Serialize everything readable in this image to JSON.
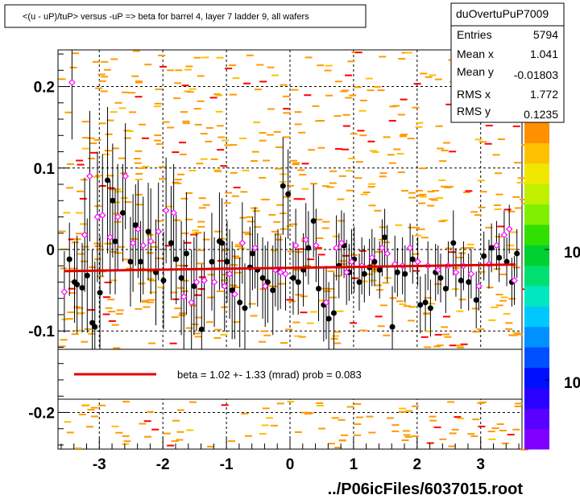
{
  "chart_data": {
    "type": "scatter",
    "title": "<(u - uP)/tuP> versus  -uP => beta for barrel 4, layer 7 ladder 9, all wafers",
    "xlim": [
      -3.65,
      3.65
    ],
    "ylim": [
      -0.245,
      0.245
    ],
    "xticks": [
      "-3",
      "-2",
      "-1",
      "0",
      "1",
      "2",
      "3"
    ],
    "xtick_values": [
      -3,
      -2,
      -1,
      0,
      1,
      2,
      3
    ],
    "yticks": [
      "0.2",
      "0.1",
      "0",
      "-0.1",
      "-0.2"
    ],
    "ytick_values": [
      0.2,
      0.1,
      0,
      -0.1,
      -0.2
    ],
    "grid": true,
    "stats": {
      "name": "duOvertuPuP7009",
      "rows": [
        {
          "label": "Entries",
          "value": "5794"
        },
        {
          "label": "Mean x",
          "value": "1.041"
        },
        {
          "label": "Mean y",
          "value": "-0.01803"
        },
        {
          "label": "RMS x",
          "value": "1.772"
        },
        {
          "label": "RMS y",
          "value": "0.1235"
        }
      ]
    },
    "palette_labels": [
      "10",
      "10"
    ],
    "palette_colors": [
      "#7f00ff",
      "#5a00ff",
      "#2a00ff",
      "#0010ff",
      "#0050ff",
      "#0090ff",
      "#00c8ff",
      "#00e8c0",
      "#00e070",
      "#00d030",
      "#30e000",
      "#80f000",
      "#c0f000",
      "#f0e800",
      "#ffc000",
      "#ff9000"
    ],
    "fit": {
      "label": "beta =    1.02 +-  1.33 (mrad) prob = 0.083",
      "x": [
        -3.55,
        3.55
      ],
      "y": [
        -0.0265,
        -0.0185
      ],
      "color": "#e00000"
    },
    "profile_filled": {
      "x": [
        -3.47,
        -3.39,
        -3.35,
        -3.27,
        -3.19,
        -3.11,
        -3.07,
        -2.99,
        -2.87,
        -2.79,
        -2.75,
        -2.63,
        -2.51,
        -2.43,
        -2.35,
        -2.23,
        -2.11,
        -1.99,
        -1.87,
        -1.79,
        -1.71,
        -1.63,
        -1.51,
        -1.39,
        -1.23,
        -1.11,
        -1.07,
        -0.99,
        -0.91,
        -0.79,
        -0.71,
        -0.63,
        -0.59,
        -0.51,
        -0.43,
        -0.35,
        -0.27,
        -0.19,
        -0.11,
        -0.03,
        0.05,
        0.13,
        0.21,
        0.29,
        0.37,
        0.45,
        0.53,
        0.61,
        0.69,
        0.77,
        0.85,
        0.93,
        1.01,
        1.09,
        1.17,
        1.25,
        1.33,
        1.41,
        1.49,
        1.61,
        1.69,
        1.81,
        1.93,
        2.05,
        2.13,
        2.21,
        2.29,
        2.37,
        2.45,
        2.57,
        2.69,
        2.81,
        2.93,
        3.05,
        3.17,
        3.29,
        3.41,
        3.49,
        3.57
      ],
      "y": [
        -0.012,
        -0.04,
        -0.043,
        -0.047,
        -0.032,
        -0.09,
        -0.095,
        -0.053,
        0.085,
        0.06,
        0.01,
        0.045,
        -0.015,
        0.03,
        -0.015,
        0.022,
        -0.028,
        -0.038,
        0.008,
        -0.012,
        -0.035,
        -0.005,
        -0.045,
        -0.098,
        -0.015,
        0.01,
        0.008,
        -0.015,
        -0.05,
        -0.065,
        -0.072,
        -0.022,
        -0.005,
        -0.025,
        -0.035,
        -0.04,
        -0.05,
        -0.025,
        0.078,
        0.068,
        -0.035,
        -0.04,
        -0.025,
        0.002,
        0.035,
        -0.048,
        -0.068,
        -0.085,
        -0.078,
        -0.02,
        0.005,
        -0.028,
        -0.012,
        -0.04,
        -0.03,
        -0.022,
        -0.015,
        -0.025,
        0.015,
        -0.095,
        -0.028,
        -0.03,
        -0.012,
        -0.068,
        -0.065,
        -0.072,
        -0.028,
        -0.035,
        -0.048,
        0.008,
        -0.038,
        -0.04,
        -0.062,
        -0.008,
        0.002,
        -0.01,
        -0.015,
        -0.04,
        -0.005
      ],
      "err": [
        0.045,
        0.05,
        0.06,
        0.055,
        0.07,
        0.09,
        0.08,
        0.07,
        0.09,
        0.07,
        0.065,
        0.06,
        0.055,
        0.05,
        0.05,
        0.06,
        0.065,
        0.06,
        0.07,
        0.055,
        0.07,
        0.075,
        0.06,
        0.08,
        0.06,
        0.06,
        0.055,
        0.05,
        0.06,
        0.055,
        0.055,
        0.05,
        0.045,
        0.045,
        0.05,
        0.05,
        0.055,
        0.05,
        0.06,
        0.055,
        0.045,
        0.04,
        0.045,
        0.045,
        0.045,
        0.04,
        0.045,
        0.045,
        0.05,
        0.04,
        0.04,
        0.035,
        0.04,
        0.035,
        0.035,
        0.035,
        0.03,
        0.035,
        0.035,
        0.05,
        0.03,
        0.035,
        0.03,
        0.035,
        0.035,
        0.035,
        0.035,
        0.03,
        0.03,
        0.04,
        0.035,
        0.035,
        0.035,
        0.03,
        0.03,
        0.03,
        0.03,
        0.03,
        0.03
      ]
    },
    "profile_open": {
      "x": [
        -3.55,
        -3.43,
        -3.23,
        -3.15,
        -3.03,
        -2.95,
        -2.83,
        -2.71,
        -2.59,
        -2.47,
        -2.39,
        -2.31,
        -2.19,
        -2.07,
        -1.95,
        -1.83,
        -1.67,
        -1.55,
        -1.47,
        -1.35,
        -1.19,
        -1.03,
        -0.95,
        -0.87,
        -0.75,
        -0.55,
        -0.39,
        -0.23,
        -0.15,
        -0.07,
        0.09,
        0.25,
        0.41,
        0.57,
        0.73,
        0.81,
        0.89,
        0.97,
        1.13,
        1.29,
        1.45,
        1.53,
        1.65,
        1.77,
        1.89,
        2.01,
        2.17,
        2.33,
        2.49,
        2.61,
        2.73,
        2.85,
        2.97,
        3.13,
        3.25,
        3.37,
        3.45,
        3.53
      ],
      "y": [
        -0.052,
        0.205,
        0.018,
        0.09,
        0.04,
        0.042,
        0.015,
        0.04,
        0.09,
        0.008,
        0.025,
        0.005,
        0.01,
        0.022,
        0.048,
        0.045,
        -0.058,
        -0.065,
        -0.04,
        -0.038,
        -0.04,
        -0.045,
        -0.03,
        -0.055,
        0.008,
        0.002,
        -0.045,
        -0.025,
        -0.028,
        -0.03,
        0.005,
        0.012,
        0.005,
        -0.065,
        0.002,
        0.008,
        -0.028,
        -0.015,
        -0.02,
        -0.01,
        0.002,
        -0.005,
        -0.018,
        -0.02,
        0.002,
        -0.015,
        -0.02,
        -0.025,
        -0.02,
        -0.028,
        -0.02,
        -0.03,
        -0.045,
        -0.018,
        0.005,
        0.018,
        0.025,
        -0.038
      ],
      "err": [
        0.05,
        0.07,
        0.07,
        0.08,
        0.08,
        0.075,
        0.07,
        0.065,
        0.065,
        0.06,
        0.06,
        0.06,
        0.065,
        0.06,
        0.065,
        0.06,
        0.07,
        0.065,
        0.06,
        0.06,
        0.055,
        0.055,
        0.055,
        0.055,
        0.05,
        0.05,
        0.05,
        0.045,
        0.045,
        0.045,
        0.045,
        0.045,
        0.045,
        0.045,
        0.04,
        0.04,
        0.04,
        0.04,
        0.035,
        0.035,
        0.035,
        0.035,
        0.035,
        0.035,
        0.03,
        0.03,
        0.03,
        0.03,
        0.03,
        0.03,
        0.03,
        0.03,
        0.03,
        0.03,
        0.03,
        0.03,
        0.03,
        0.03
      ]
    }
  }
}
